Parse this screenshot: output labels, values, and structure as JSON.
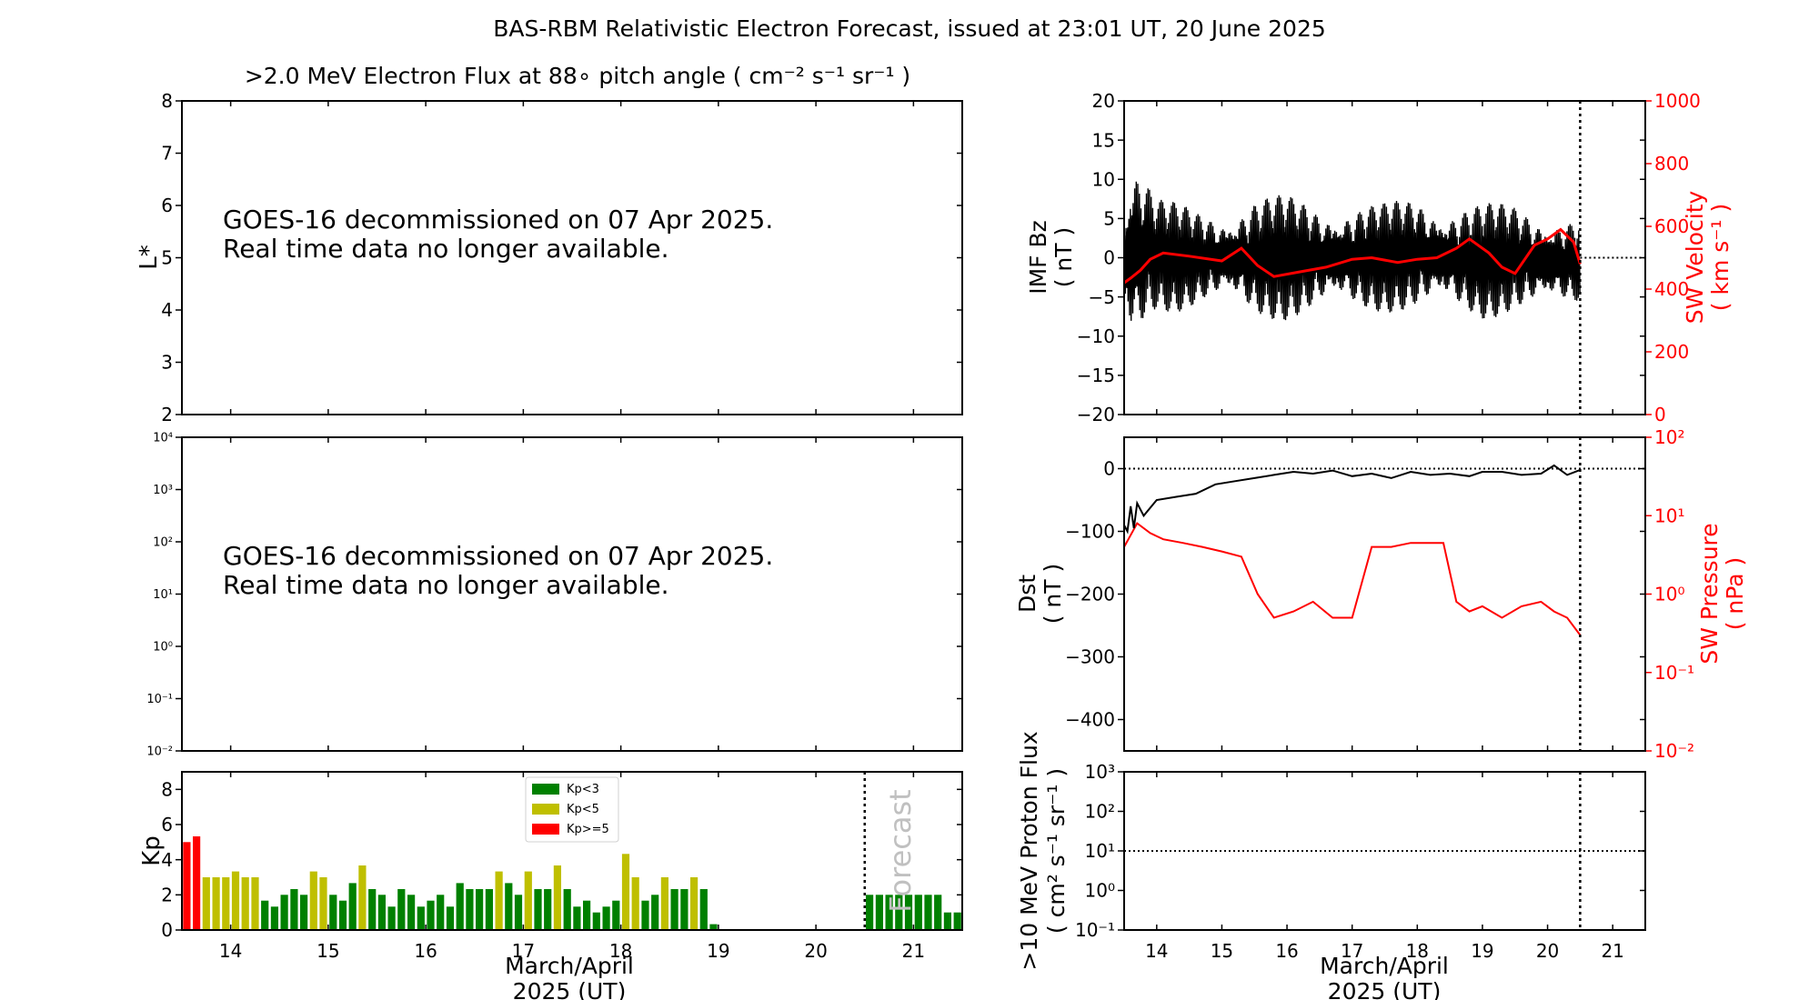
{
  "title": "BAS-RBM Relativistic Electron Forecast, issued at 23:01 UT, 20 June 2025",
  "flux_title": ">2.0 MeV Electron Flux at 88∘ pitch angle ( cm⁻² s⁻¹ sr⁻¹ )",
  "unavailable_line1": "GOES-16 decommissioned on 07 Apr 2025.",
  "unavailable_line2": "Real time data no longer available.",
  "x_axis": {
    "ticks": [
      "14",
      "15",
      "16",
      "17",
      "18",
      "19",
      "20",
      "21"
    ],
    "label_line1": "March/April",
    "label_line2": "2025 (UT)",
    "range": [
      13.5,
      21.5
    ],
    "forecast_start": 20.5
  },
  "colors": {
    "kp_quiet": "#008000",
    "kp_active": "#bfbf00",
    "kp_storm": "#ff0000",
    "secondary_axis": "#ff0000",
    "grey_text": "#c0c0c0"
  },
  "chart_data": [
    {
      "id": "lstar",
      "type": "heatmap",
      "ylabel": "L*",
      "ylim": [
        2,
        8
      ],
      "yticks": [
        "2",
        "3",
        "4",
        "5",
        "6",
        "7",
        "8"
      ],
      "values": []
    },
    {
      "id": "flux",
      "type": "line",
      "yscale": "log",
      "ylim": [
        0.01,
        10000
      ],
      "yticks": [
        "10⁻²",
        "10⁻¹",
        "10⁰",
        "10¹",
        "10²",
        "10³",
        "10⁴"
      ],
      "values": []
    },
    {
      "id": "kp",
      "type": "bar",
      "ylabel": "Kp",
      "ylim": [
        0,
        9
      ],
      "yticks": [
        "0",
        "2",
        "4",
        "6",
        "8"
      ],
      "forecast_label": "Forecast",
      "legend": [
        "Kp<3",
        "Kp<5",
        "Kp>=5"
      ],
      "legend_position": "top-center",
      "bar_width_days": 0.1,
      "observed_start": 13.5,
      "observed": [
        5.0,
        5.33,
        3.0,
        3.0,
        3.0,
        3.33,
        3.0,
        3.0,
        1.67,
        1.33,
        2.0,
        2.33,
        2.0,
        3.33,
        3.0,
        2.0,
        1.67,
        2.67,
        3.67,
        2.33,
        2.0,
        1.33,
        2.33,
        2.0,
        1.33,
        1.67,
        2.0,
        1.33,
        2.67,
        2.33,
        2.33,
        2.33,
        3.33,
        2.67,
        2.0,
        3.33,
        2.33,
        2.33,
        3.67,
        2.33,
        1.33,
        1.67,
        1.0,
        1.33,
        1.67,
        4.33,
        3.0,
        1.67,
        2.0,
        3.0,
        2.33,
        2.33,
        3.0,
        2.33,
        0.33
      ],
      "forecast_start": 20.5,
      "forecast": [
        2.0,
        2.0,
        2.0,
        2.0,
        2.0,
        2.0,
        2.0,
        2.0,
        1.0,
        1.0
      ]
    },
    {
      "id": "imf",
      "type": "line",
      "ylabel": "IMF Bz",
      "yunit": "( nT )",
      "ylim": [
        -20,
        20
      ],
      "yticks": [
        "−20",
        "−15",
        "−10",
        "−5",
        "0",
        "5",
        "10",
        "15",
        "20"
      ],
      "y2label": "SW Velocity",
      "y2unit": "( km s⁻¹ )",
      "y2lim": [
        0,
        1000
      ],
      "y2ticks": [
        "0",
        "200",
        "400",
        "600",
        "800",
        "1000"
      ],
      "series": [
        {
          "envelope": {
            "x": [
              13.5,
              13.6,
              13.7,
              13.8,
              14.0,
              14.3,
              14.7,
              15.0,
              15.5,
              16.0,
              16.5,
              17.0,
              17.5,
              18.0,
              18.5,
              19.0,
              19.5,
              20.0,
              20.5
            ],
            "max": [
              6,
              15,
              14,
              12,
              8,
              7,
              6,
              6,
              8,
              8,
              7,
              7,
              7,
              8,
              7,
              7,
              7,
              6,
              5
            ],
            "min": [
              -8,
              -14,
              -13,
              -10,
              -7,
              -7,
              -6,
              -6,
              -8,
              -8,
              -7,
              -7,
              -7,
              -7,
              -7,
              -8,
              -7,
              -7,
              -6
            ]
          }
        },
        {
          "axis": "secondary",
          "x": [
            13.5,
            13.6,
            13.75,
            13.9,
            14.1,
            14.5,
            15.0,
            15.3,
            15.55,
            15.8,
            16.2,
            16.6,
            17.0,
            17.3,
            17.7,
            18.0,
            18.3,
            18.6,
            18.8,
            19.1,
            19.3,
            19.5,
            19.8,
            20.0,
            20.2,
            20.4,
            20.5
          ],
          "values": [
            420,
            435,
            460,
            495,
            515,
            505,
            490,
            530,
            475,
            440,
            455,
            470,
            495,
            500,
            485,
            495,
            500,
            530,
            560,
            515,
            470,
            450,
            540,
            560,
            590,
            550,
            480
          ]
        }
      ]
    },
    {
      "id": "dst",
      "type": "line",
      "ylabel": "Dst",
      "yunit": "( nT )",
      "ylim": [
        -450,
        50
      ],
      "yticks": [
        "−400",
        "−300",
        "−200",
        "−100",
        "0"
      ],
      "y2label": "SW Pressure",
      "y2unit": "( nPa )",
      "y2scale": "log",
      "y2lim": [
        0.01,
        100
      ],
      "y2ticks": [
        "10⁻²",
        "10⁻¹",
        "10⁰",
        "10¹",
        "10²"
      ],
      "series": [
        {
          "x": [
            13.5,
            13.55,
            13.6,
            13.65,
            13.7,
            13.8,
            14.0,
            14.3,
            14.6,
            14.9,
            15.2,
            15.5,
            15.8,
            16.1,
            16.4,
            16.7,
            17.0,
            17.3,
            17.6,
            17.9,
            18.2,
            18.5,
            18.8,
            19.0,
            19.3,
            19.6,
            19.9,
            20.1,
            20.3,
            20.5
          ],
          "values": [
            -90,
            -100,
            -60,
            -95,
            -55,
            -75,
            -50,
            -45,
            -40,
            -25,
            -20,
            -15,
            -10,
            -5,
            -8,
            -3,
            -12,
            -8,
            -15,
            -5,
            -10,
            -8,
            -12,
            -5,
            -5,
            -10,
            -8,
            5,
            -10,
            -2
          ]
        },
        {
          "axis": "secondary",
          "x": [
            13.5,
            13.7,
            13.9,
            14.1,
            14.4,
            14.7,
            15.0,
            15.3,
            15.55,
            15.8,
            16.1,
            16.4,
            16.7,
            17.0,
            17.3,
            17.6,
            17.9,
            18.2,
            18.4,
            18.6,
            18.8,
            19.0,
            19.3,
            19.6,
            19.9,
            20.1,
            20.3,
            20.5
          ],
          "values": [
            4,
            8,
            6,
            5,
            4.5,
            4,
            3.5,
            3,
            1,
            0.5,
            0.6,
            0.8,
            0.5,
            0.5,
            4,
            4,
            4.5,
            4.5,
            4.5,
            0.8,
            0.6,
            0.7,
            0.5,
            0.7,
            0.8,
            0.6,
            0.5,
            0.3
          ]
        }
      ]
    },
    {
      "id": "proton",
      "type": "line",
      "ylabel": ">10 MeV Proton Flux",
      "yunit": "( cm² s⁻¹ sr⁻¹ )",
      "yscale": "log",
      "ylim": [
        0.1,
        1000
      ],
      "yticks": [
        "10⁻¹",
        "10⁰",
        "10¹",
        "10²",
        "10³"
      ],
      "threshold": 10,
      "values": []
    }
  ]
}
